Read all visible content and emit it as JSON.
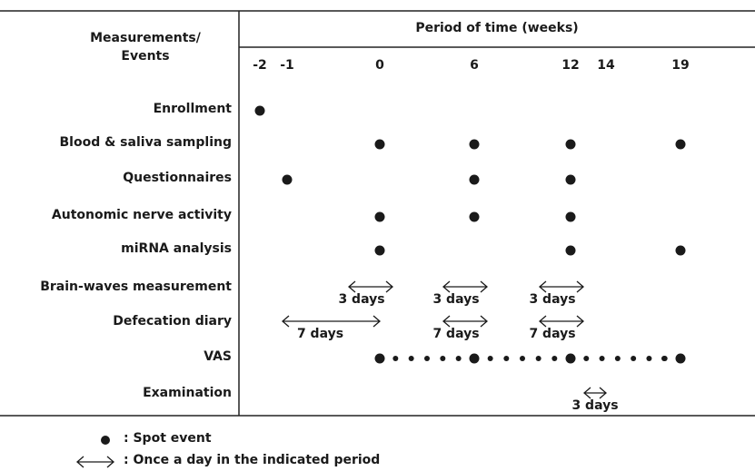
{
  "header": {
    "row_title": [
      "Measurements/",
      "Events"
    ],
    "period_title": "Period of time (weeks)"
  },
  "weeks": [
    "-2",
    "-1",
    "0",
    "6",
    "12",
    "14",
    "19"
  ],
  "rows": [
    {
      "label": "Enrollment",
      "spots": [
        "-2"
      ]
    },
    {
      "label": "Blood & saliva sampling",
      "spots": [
        "0",
        "6",
        "12",
        "19"
      ]
    },
    {
      "label": "Questionnaires",
      "spots": [
        "-1",
        "6",
        "12"
      ]
    },
    {
      "label": "Autonomic nerve activity",
      "spots": [
        "0",
        "6",
        "12"
      ]
    },
    {
      "label": "miRNA analysis",
      "spots": [
        "0",
        "12",
        "19"
      ]
    },
    {
      "label": "Brain-waves measurement",
      "periods": [
        {
          "at": "0",
          "label": "3 days"
        },
        {
          "at": "6",
          "label": "3 days"
        },
        {
          "at": "12",
          "label": "3 days"
        }
      ]
    },
    {
      "label": "Defecation diary",
      "periods": [
        {
          "from": "-1",
          "to": "0",
          "label": "7 days"
        },
        {
          "at": "6",
          "label": "7 days"
        },
        {
          "at": "12",
          "label": "7 days"
        }
      ]
    },
    {
      "label": "VAS",
      "spots": [
        "0",
        "6",
        "12",
        "19"
      ],
      "daily_between": true
    },
    {
      "label": "Examination",
      "periods": [
        {
          "from": "12",
          "to": "14",
          "label": "3 days"
        }
      ]
    }
  ],
  "legend": {
    "spot": ": Spot event",
    "period": ": Once a day in the indicated period"
  }
}
